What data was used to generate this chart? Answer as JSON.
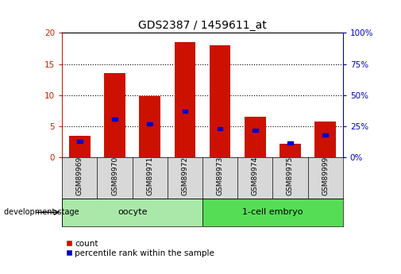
{
  "title": "GDS2387 / 1459611_at",
  "samples": [
    "GSM89969",
    "GSM89970",
    "GSM89971",
    "GSM89972",
    "GSM89973",
    "GSM89974",
    "GSM89975",
    "GSM89999"
  ],
  "counts": [
    3.5,
    13.5,
    9.8,
    18.5,
    18.0,
    6.5,
    2.2,
    5.8
  ],
  "percentiles": [
    13,
    31,
    27,
    37,
    23,
    22,
    12,
    18
  ],
  "groups": [
    {
      "label": "oocyte",
      "indices": [
        0,
        1,
        2,
        3
      ],
      "color": "#aae8aa"
    },
    {
      "label": "1-cell embryo",
      "indices": [
        4,
        5,
        6,
        7
      ],
      "color": "#55dd55"
    }
  ],
  "left_ylim": [
    0,
    20
  ],
  "right_ylim": [
    0,
    100
  ],
  "left_yticks": [
    0,
    5,
    10,
    15,
    20
  ],
  "right_yticks": [
    0,
    25,
    50,
    75,
    100
  ],
  "left_axis_color": "#cc2200",
  "right_axis_color": "#0000cc",
  "bar_color": "#cc1100",
  "square_color": "#0000cc",
  "bar_width": 0.6,
  "xlabel_area_color": "#d8d8d8",
  "dev_stage_label": "development stage",
  "legend_count_label": "count",
  "legend_percentile_label": "percentile rank within the sample",
  "title_fontsize": 10,
  "tick_fontsize": 7.5,
  "label_fontsize": 8
}
